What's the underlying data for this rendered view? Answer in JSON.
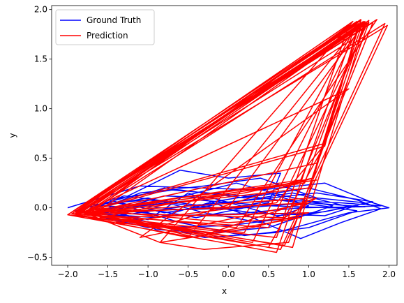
{
  "chart_data": {
    "type": "line",
    "title": "",
    "xlabel": "x",
    "ylabel": "y",
    "xlim": [
      -2.2,
      2.1
    ],
    "ylim": [
      -0.58,
      2.04
    ],
    "grid": false,
    "legend_position": "top-left",
    "xticks": [
      -2.0,
      -1.5,
      -1.0,
      -0.5,
      0.0,
      0.5,
      1.0,
      1.5,
      2.0
    ],
    "xtick_labels": [
      "−2.0",
      "−1.5",
      "−1.0",
      "−0.5",
      "0.0",
      "0.5",
      "1.0",
      "1.5",
      "2.0"
    ],
    "yticks": [
      -0.5,
      0.0,
      0.5,
      1.0,
      1.5,
      2.0
    ],
    "ytick_labels": [
      "−0.5",
      "0.0",
      "0.5",
      "1.0",
      "1.5",
      "2.0"
    ],
    "series": [
      {
        "name": "Ground Truth",
        "color": "#0000ff",
        "points": [
          [
            -2.0,
            0.0
          ],
          [
            -1.1,
            0.22
          ],
          [
            0.4,
            0.18
          ],
          [
            1.2,
            0.25
          ],
          [
            1.8,
            0.05
          ],
          [
            2.0,
            0.0
          ],
          [
            1.5,
            -0.05
          ],
          [
            0.6,
            -0.25
          ],
          [
            -0.3,
            -0.3
          ],
          [
            -1.2,
            -0.1
          ],
          [
            -1.9,
            -0.03
          ],
          [
            -1.3,
            0.1
          ],
          [
            -0.6,
            0.38
          ],
          [
            0.0,
            0.3
          ],
          [
            0.65,
            0.35
          ],
          [
            0.5,
            0.05
          ],
          [
            -0.4,
            -0.1
          ],
          [
            -1.4,
            0.05
          ],
          [
            -0.8,
            0.2
          ],
          [
            0.2,
            0.1
          ],
          [
            1.0,
            0.2
          ],
          [
            1.6,
            0.08
          ],
          [
            1.9,
            -0.01
          ],
          [
            1.4,
            -0.15
          ],
          [
            0.9,
            -0.31
          ],
          [
            0.3,
            -0.1
          ],
          [
            -0.5,
            0.15
          ],
          [
            -1.0,
            -0.12
          ],
          [
            -1.6,
            -0.02
          ],
          [
            -0.9,
            0.05
          ],
          [
            0.1,
            0.25
          ],
          [
            0.7,
            0.12
          ],
          [
            1.3,
            0.02
          ],
          [
            0.5,
            -0.2
          ],
          [
            -0.2,
            -0.25
          ],
          [
            -0.9,
            -0.22
          ],
          [
            -1.5,
            0.02
          ],
          [
            -1.1,
            0.15
          ],
          [
            -0.3,
            0.22
          ],
          [
            0.4,
            0.3
          ],
          [
            1.1,
            0.1
          ],
          [
            1.7,
            0.05
          ],
          [
            1.2,
            -0.08
          ],
          [
            0.3,
            -0.05
          ],
          [
            -0.6,
            0.05
          ],
          [
            -1.3,
            0.12
          ],
          [
            -1.8,
            -0.05
          ],
          [
            -1.0,
            -0.2
          ],
          [
            0.0,
            -0.18
          ],
          [
            0.8,
            -0.1
          ],
          [
            1.5,
            0.01
          ],
          [
            0.8,
            0.15
          ],
          [
            0.0,
            0.05
          ],
          [
            -0.8,
            -0.05
          ],
          [
            -1.5,
            0.08
          ],
          [
            -0.7,
            0.18
          ],
          [
            0.2,
            0.12
          ],
          [
            0.9,
            0.05
          ],
          [
            1.6,
            -0.03
          ],
          [
            1.0,
            -0.2
          ],
          [
            0.2,
            -0.28
          ],
          [
            -0.6,
            -0.15
          ],
          [
            -1.2,
            0.0
          ],
          [
            -1.7,
            0.03
          ],
          [
            -1.0,
            0.08
          ],
          [
            -0.1,
            -0.02
          ],
          [
            0.6,
            0.08
          ],
          [
            1.4,
            0.05
          ],
          [
            1.9,
            0.02
          ],
          [
            1.3,
            0.0
          ],
          [
            0.5,
            0.02
          ],
          [
            -0.4,
            0.08
          ],
          [
            -1.1,
            0.02
          ],
          [
            -1.6,
            -0.06
          ],
          [
            -0.9,
            -0.1
          ],
          [
            -0.2,
            0.06
          ],
          [
            0.5,
            0.15
          ],
          [
            1.0,
            0.02
          ],
          [
            0.4,
            -0.15
          ],
          [
            -0.3,
            -0.05
          ],
          [
            -1.0,
            0.1
          ],
          [
            -1.7,
            0.0
          ],
          [
            -1.2,
            -0.06
          ],
          [
            -0.5,
            0.02
          ],
          [
            0.3,
            0.08
          ],
          [
            1.1,
            0.15
          ],
          [
            1.8,
            0.06
          ],
          [
            1.2,
            -0.04
          ],
          [
            0.6,
            -0.08
          ],
          [
            -0.2,
            0.1
          ],
          [
            -0.8,
            0.12
          ],
          [
            -1.4,
            -0.02
          ],
          [
            -0.7,
            -0.08
          ],
          [
            0.1,
            -0.06
          ],
          [
            0.9,
            0.0
          ],
          [
            1.7,
            0.01
          ],
          [
            1.0,
            0.05
          ],
          [
            0.2,
            0.0
          ],
          [
            -0.6,
            -0.02
          ],
          [
            -1.3,
            0.04
          ]
        ]
      },
      {
        "name": "Prediction",
        "color": "#ff0000",
        "points": [
          [
            -2.0,
            -0.07
          ],
          [
            1.6,
            1.88
          ],
          [
            0.6,
            -0.45
          ],
          [
            -2.0,
            -0.07
          ],
          [
            1.7,
            1.87
          ],
          [
            0.0,
            0.0
          ],
          [
            -1.9,
            -0.05
          ],
          [
            1.65,
            1.9
          ],
          [
            0.8,
            -0.4
          ],
          [
            -1.8,
            -0.03
          ],
          [
            1.75,
            1.89
          ],
          [
            0.5,
            -0.2
          ],
          [
            -1.95,
            -0.06
          ],
          [
            1.8,
            1.87
          ],
          [
            1.2,
            0.65
          ],
          [
            -1.85,
            -0.05
          ],
          [
            1.98,
            1.84
          ],
          [
            0.7,
            -0.38
          ],
          [
            -1.9,
            -0.04
          ],
          [
            1.55,
            1.88
          ],
          [
            -0.85,
            -0.35
          ],
          [
            -1.7,
            -0.08
          ],
          [
            1.7,
            1.86
          ],
          [
            1.05,
            0.1
          ],
          [
            -1.95,
            -0.06
          ],
          [
            1.6,
            1.85
          ],
          [
            0.2,
            -0.25
          ],
          [
            -1.8,
            -0.07
          ],
          [
            1.72,
            1.87
          ],
          [
            0.9,
            0.28
          ],
          [
            -1.9,
            -0.05
          ],
          [
            1.65,
            1.89
          ],
          [
            1.1,
            0.45
          ],
          [
            -1.7,
            -0.04
          ],
          [
            1.5,
            1.84
          ],
          [
            0.6,
            -0.3
          ],
          [
            -2.0,
            -0.07
          ],
          [
            1.85,
            1.9
          ],
          [
            0.1,
            -0.2
          ],
          [
            -1.8,
            -0.05
          ],
          [
            1.6,
            1.82
          ],
          [
            -0.5,
            -0.3
          ],
          [
            -1.9,
            -0.07
          ],
          [
            1.7,
            1.88
          ],
          [
            1.0,
            0.2
          ],
          [
            -1.75,
            -0.05
          ],
          [
            1.95,
            1.86
          ],
          [
            0.65,
            -0.42
          ],
          [
            -1.95,
            -0.06
          ],
          [
            1.62,
            1.86
          ],
          [
            1.2,
            0.62
          ],
          [
            -1.85,
            -0.06
          ],
          [
            1.5,
            1.2
          ],
          [
            -1.1,
            -0.3
          ],
          [
            1.0,
            0.05
          ],
          [
            -1.9,
            -0.07
          ],
          [
            1.55,
            1.7
          ],
          [
            0.3,
            -0.35
          ],
          [
            -1.8,
            -0.05
          ],
          [
            1.68,
            1.88
          ],
          [
            0.95,
            0.25
          ],
          [
            -1.9,
            -0.06
          ],
          [
            1.75,
            1.87
          ],
          [
            0.75,
            -0.35
          ],
          [
            -0.3,
            -0.42
          ],
          [
            -0.85,
            -0.35
          ],
          [
            0.3,
            -0.2
          ],
          [
            1.0,
            -0.05
          ],
          [
            -1.6,
            -0.1
          ],
          [
            -1.0,
            0.0
          ],
          [
            0.4,
            0.2
          ],
          [
            1.1,
            0.28
          ],
          [
            -0.6,
            0.1
          ],
          [
            -1.6,
            -0.03
          ],
          [
            0.0,
            -0.15
          ],
          [
            0.9,
            -0.1
          ],
          [
            -0.2,
            -0.25
          ],
          [
            -1.4,
            -0.15
          ],
          [
            0.6,
            0.05
          ],
          [
            1.2,
            0.64
          ],
          [
            0.5,
            -0.4
          ],
          [
            -1.7,
            -0.06
          ],
          [
            0.2,
            0.15
          ],
          [
            1.05,
            0.3
          ],
          [
            -0.9,
            -0.2
          ],
          [
            -1.8,
            -0.05
          ],
          [
            0.7,
            -0.1
          ],
          [
            1.1,
            0.1
          ],
          [
            -0.4,
            -0.3
          ],
          [
            -1.5,
            -0.08
          ]
        ]
      }
    ]
  }
}
